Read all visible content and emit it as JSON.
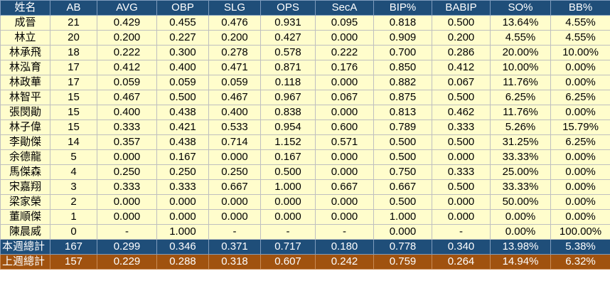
{
  "headers": [
    "姓名",
    "AB",
    "AVG",
    "OBP",
    "SLG",
    "OPS",
    "SecA",
    "BIP%",
    "BABIP",
    "SO%",
    "BB%"
  ],
  "rows": [
    [
      "成晉",
      "21",
      "0.429",
      "0.455",
      "0.476",
      "0.931",
      "0.095",
      "0.818",
      "0.500",
      "13.64%",
      "4.55%"
    ],
    [
      "林立",
      "20",
      "0.200",
      "0.227",
      "0.200",
      "0.427",
      "0.000",
      "0.909",
      "0.200",
      "4.55%",
      "4.55%"
    ],
    [
      "林承飛",
      "18",
      "0.222",
      "0.300",
      "0.278",
      "0.578",
      "0.222",
      "0.700",
      "0.286",
      "20.00%",
      "10.00%"
    ],
    [
      "林泓育",
      "17",
      "0.412",
      "0.400",
      "0.471",
      "0.871",
      "0.176",
      "0.850",
      "0.412",
      "10.00%",
      "0.00%"
    ],
    [
      "林政華",
      "17",
      "0.059",
      "0.059",
      "0.059",
      "0.118",
      "0.000",
      "0.882",
      "0.067",
      "11.76%",
      "0.00%"
    ],
    [
      "林智平",
      "15",
      "0.467",
      "0.500",
      "0.467",
      "0.967",
      "0.067",
      "0.875",
      "0.500",
      "6.25%",
      "6.25%"
    ],
    [
      "張閔勛",
      "15",
      "0.400",
      "0.438",
      "0.400",
      "0.838",
      "0.000",
      "0.813",
      "0.462",
      "11.76%",
      "0.00%"
    ],
    [
      "林子偉",
      "15",
      "0.333",
      "0.421",
      "0.533",
      "0.954",
      "0.600",
      "0.789",
      "0.333",
      "5.26%",
      "15.79%"
    ],
    [
      "李勛傑",
      "14",
      "0.357",
      "0.438",
      "0.714",
      "1.152",
      "0.571",
      "0.500",
      "0.500",
      "31.25%",
      "6.25%"
    ],
    [
      "余德龍",
      "5",
      "0.000",
      "0.167",
      "0.000",
      "0.167",
      "0.000",
      "0.500",
      "0.000",
      "33.33%",
      "0.00%"
    ],
    [
      "馬傑森",
      "4",
      "0.250",
      "0.250",
      "0.250",
      "0.500",
      "0.000",
      "0.750",
      "0.333",
      "25.00%",
      "0.00%"
    ],
    [
      "宋嘉翔",
      "3",
      "0.333",
      "0.333",
      "0.667",
      "1.000",
      "0.667",
      "0.667",
      "0.500",
      "33.33%",
      "0.00%"
    ],
    [
      "梁家榮",
      "2",
      "0.000",
      "0.000",
      "0.000",
      "0.000",
      "0.000",
      "0.500",
      "0.000",
      "50.00%",
      "0.00%"
    ],
    [
      "董順傑",
      "1",
      "0.000",
      "0.000",
      "0.000",
      "0.000",
      "0.000",
      "1.000",
      "0.000",
      "0.00%",
      "0.00%"
    ],
    [
      "陳晨威",
      "0",
      "-",
      "1.000",
      "-",
      "-",
      "-",
      "0.000",
      "-",
      "0.00%",
      "100.00%"
    ]
  ],
  "totals": [
    {
      "kind": "this-week",
      "cells": [
        "本週總計",
        "167",
        "0.299",
        "0.346",
        "0.371",
        "0.717",
        "0.180",
        "0.778",
        "0.340",
        "13.98%",
        "5.38%"
      ]
    },
    {
      "kind": "last-week",
      "cells": [
        "上週總計",
        "157",
        "0.229",
        "0.288",
        "0.318",
        "0.607",
        "0.242",
        "0.759",
        "0.264",
        "14.94%",
        "6.32%"
      ]
    }
  ],
  "colors": {
    "header_bg": "#1f4e79",
    "row_bg": "#fffdcc",
    "this_week_bg": "#1f4e79",
    "last_week_bg": "#a0520f"
  }
}
